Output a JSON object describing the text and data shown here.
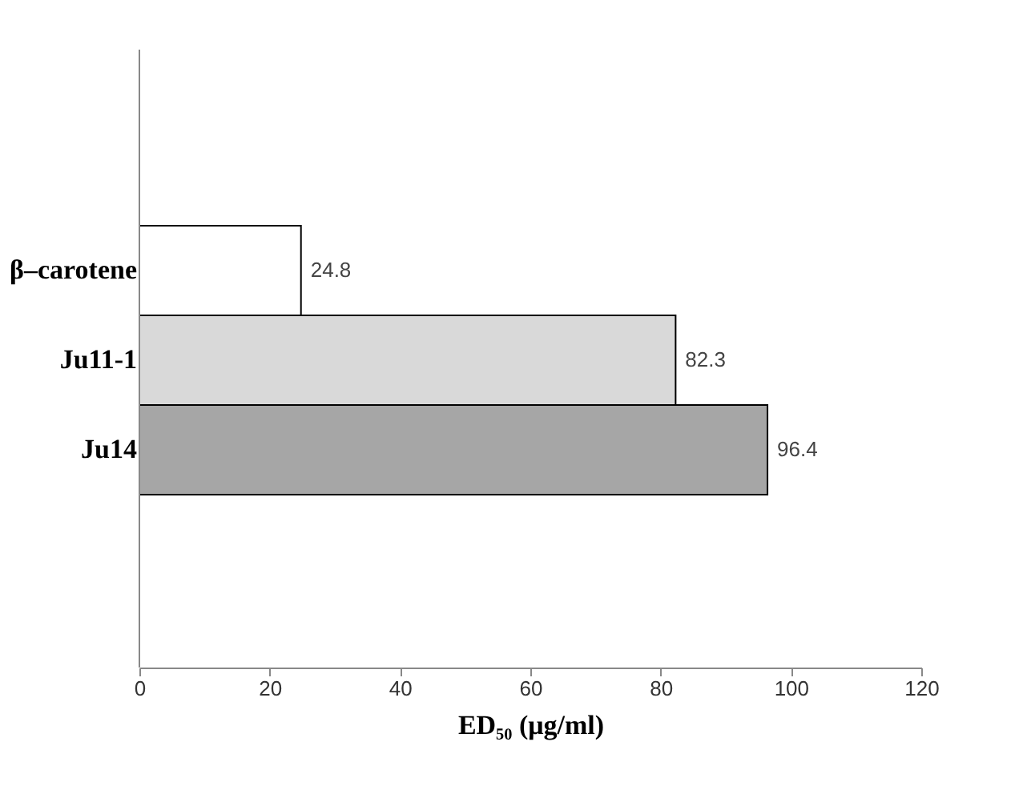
{
  "chart_data": {
    "type": "bar",
    "orientation": "horizontal",
    "categories": [
      "β–carotene",
      "Ju11-1",
      "Ju14"
    ],
    "values": [
      24.8,
      82.3,
      96.4
    ],
    "colors": [
      "#ffffff",
      "#d9d9d9",
      "#a6a6a6"
    ],
    "xlabel": "ED₅₀ (μg/ml)",
    "xlim": [
      0,
      120
    ],
    "xticks": [
      0,
      20,
      40,
      60,
      80,
      100,
      120
    ],
    "data_labels": true,
    "grid": false,
    "legend": false
  }
}
